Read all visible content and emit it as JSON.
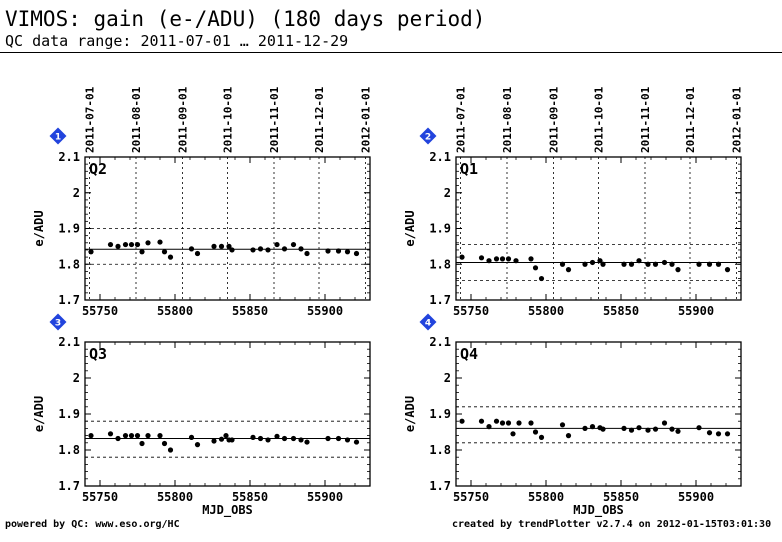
{
  "header": {
    "title": "VIMOS: gain (e-/ADU) (180 days period)",
    "subtitle": "QC data range: 2011-07-01 … 2011-12-29"
  },
  "footer": {
    "left": "powered by QC: www.eso.org/HC",
    "right": "created by trendPlotter v2.7.4 on 2012-01-15T03:01:30"
  },
  "colors": {
    "badge": "#2244dd",
    "marker": "#000000"
  },
  "chart_data": [
    {
      "type": "scatter",
      "badge": "1",
      "panel_label": "Q2",
      "ylabel": "e/ADU",
      "xlabel": "",
      "xlim": [
        55740,
        55930
      ],
      "ylim": [
        1.7,
        2.1
      ],
      "yticks": [
        1.7,
        1.8,
        1.9,
        2,
        2.1
      ],
      "xticks": [
        55750,
        55800,
        55850,
        55900
      ],
      "date_ticks": [
        "2011-07-01",
        "2011-08-01",
        "2011-09-01",
        "2011-10-01",
        "2011-11-01",
        "2011-12-01",
        "2012-01-01"
      ],
      "date_mjd": [
        55743,
        55774,
        55805,
        55835,
        55866,
        55896,
        55927
      ],
      "mean": 1.842,
      "bounds": [
        1.8,
        1.9
      ],
      "x": [
        55744,
        55757,
        55762,
        55767,
        55771,
        55775,
        55778,
        55782,
        55790,
        55793,
        55797,
        55811,
        55815,
        55826,
        55831,
        55836,
        55838,
        55852,
        55857,
        55862,
        55868,
        55873,
        55879,
        55884,
        55888,
        55902,
        55909,
        55915,
        55921
      ],
      "y": [
        1.835,
        1.855,
        1.85,
        1.855,
        1.855,
        1.855,
        1.835,
        1.86,
        1.862,
        1.835,
        1.82,
        1.843,
        1.83,
        1.85,
        1.85,
        1.85,
        1.84,
        1.84,
        1.843,
        1.84,
        1.855,
        1.843,
        1.855,
        1.843,
        1.83,
        1.837,
        1.837,
        1.835,
        1.83
      ]
    },
    {
      "type": "scatter",
      "badge": "2",
      "panel_label": "Q1",
      "ylabel": "e/ADU",
      "xlabel": "",
      "xlim": [
        55740,
        55930
      ],
      "ylim": [
        1.7,
        2.1
      ],
      "yticks": [
        1.7,
        1.8,
        1.9,
        2,
        2.1
      ],
      "xticks": [
        55750,
        55800,
        55850,
        55900
      ],
      "date_ticks": [
        "2011-07-01",
        "2011-08-01",
        "2011-09-01",
        "2011-10-01",
        "2011-11-01",
        "2011-12-01",
        "2012-01-01"
      ],
      "date_mjd": [
        55743,
        55774,
        55805,
        55835,
        55866,
        55896,
        55927
      ],
      "mean": 1.805,
      "bounds": [
        1.755,
        1.855
      ],
      "x": [
        55744,
        55757,
        55762,
        55767,
        55771,
        55775,
        55780,
        55790,
        55793,
        55797,
        55811,
        55815,
        55826,
        55831,
        55836,
        55838,
        55852,
        55857,
        55862,
        55868,
        55873,
        55879,
        55884,
        55888,
        55902,
        55909,
        55915,
        55921
      ],
      "y": [
        1.82,
        1.818,
        1.81,
        1.815,
        1.815,
        1.815,
        1.81,
        1.815,
        1.79,
        1.76,
        1.8,
        1.785,
        1.8,
        1.805,
        1.81,
        1.8,
        1.8,
        1.8,
        1.81,
        1.8,
        1.8,
        1.805,
        1.8,
        1.785,
        1.8,
        1.8,
        1.8,
        1.785
      ]
    },
    {
      "type": "scatter",
      "badge": "3",
      "panel_label": "Q3",
      "ylabel": "e/ADU",
      "xlabel": "MJD_OBS",
      "xlim": [
        55740,
        55930
      ],
      "ylim": [
        1.7,
        2.1
      ],
      "yticks": [
        1.7,
        1.8,
        1.9,
        2,
        2.1
      ],
      "xticks": [
        55750,
        55800,
        55850,
        55900
      ],
      "mean": 1.832,
      "bounds": [
        1.78,
        1.88
      ],
      "x": [
        55744,
        55757,
        55762,
        55767,
        55771,
        55775,
        55778,
        55782,
        55790,
        55793,
        55797,
        55811,
        55815,
        55826,
        55831,
        55834,
        55836,
        55838,
        55852,
        55857,
        55862,
        55868,
        55873,
        55879,
        55884,
        55888,
        55902,
        55909,
        55915,
        55921
      ],
      "y": [
        1.84,
        1.845,
        1.832,
        1.84,
        1.84,
        1.84,
        1.818,
        1.84,
        1.84,
        1.818,
        1.8,
        1.835,
        1.815,
        1.825,
        1.83,
        1.84,
        1.828,
        1.828,
        1.835,
        1.832,
        1.828,
        1.838,
        1.832,
        1.832,
        1.828,
        1.822,
        1.832,
        1.832,
        1.828,
        1.822
      ]
    },
    {
      "type": "scatter",
      "badge": "4",
      "panel_label": "Q4",
      "ylabel": "e/ADU",
      "xlabel": "MJD_OBS",
      "xlim": [
        55740,
        55930
      ],
      "ylim": [
        1.7,
        2.1
      ],
      "yticks": [
        1.7,
        1.8,
        1.9,
        2,
        2.1
      ],
      "xticks": [
        55750,
        55800,
        55850,
        55900
      ],
      "mean": 1.86,
      "bounds": [
        1.82,
        1.92
      ],
      "x": [
        55744,
        55757,
        55762,
        55767,
        55771,
        55775,
        55778,
        55782,
        55790,
        55793,
        55797,
        55811,
        55815,
        55826,
        55831,
        55836,
        55838,
        55852,
        55857,
        55862,
        55868,
        55873,
        55879,
        55884,
        55888,
        55902,
        55909,
        55915,
        55921
      ],
      "y": [
        1.88,
        1.88,
        1.865,
        1.88,
        1.875,
        1.875,
        1.845,
        1.875,
        1.875,
        1.85,
        1.835,
        1.87,
        1.84,
        1.86,
        1.865,
        1.862,
        1.858,
        1.86,
        1.855,
        1.862,
        1.855,
        1.858,
        1.875,
        1.858,
        1.852,
        1.862,
        1.848,
        1.845,
        1.845
      ]
    }
  ]
}
